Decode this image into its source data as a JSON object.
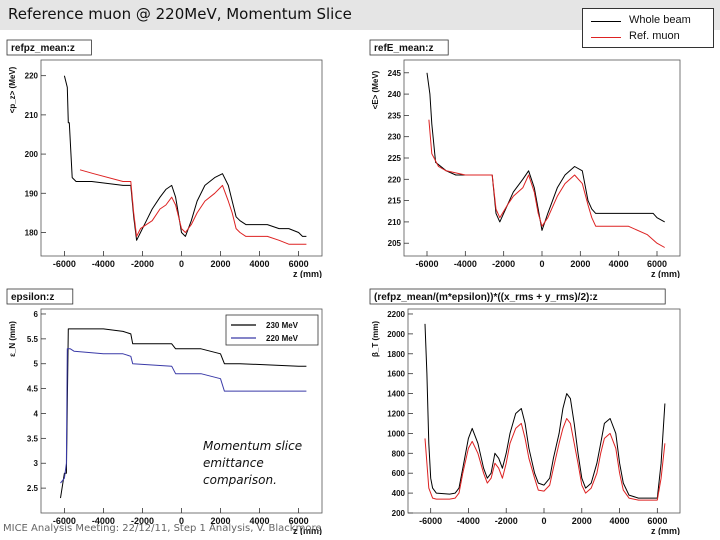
{
  "page": {
    "title": "Reference muon @ 220MeV, Momentum Slice",
    "footer": "MICE Analysis Meeting: 22/12/11, Step 1 Analysis, V. Blackmore",
    "annotation": "Momentum slice emittance comparison."
  },
  "top_legend": [
    {
      "label": "Whole beam",
      "color": "#000000"
    },
    {
      "label": "Ref. muon",
      "color": "#dd2222"
    }
  ],
  "chart_data": [
    {
      "type": "line",
      "title": "refpz_mean:z",
      "xlabel": "z (mm)",
      "ylabel": "<p_z> (MeV)",
      "xlim": [
        -7200,
        7200
      ],
      "ylim": [
        174,
        224
      ],
      "xticks": [
        -6000,
        -4000,
        -2000,
        0,
        2000,
        4000,
        6000
      ],
      "yticks": [
        180,
        190,
        200,
        210,
        220
      ],
      "series": [
        {
          "color": "#000000",
          "x": [
            -6000,
            -5850,
            -5800,
            -5750,
            -5600,
            -5400,
            -4600,
            -3000,
            -2600,
            -2450,
            -2300,
            -2100,
            -1800,
            -1500,
            -1100,
            -800,
            -500,
            -300,
            -200,
            0,
            200,
            500,
            800,
            1200,
            1700,
            2100,
            2400,
            2600,
            2800,
            3000,
            3300,
            4000,
            4400,
            5000,
            5500,
            6000,
            6200,
            6400
          ],
          "y": [
            220,
            217,
            208,
            208,
            194,
            193,
            193,
            192,
            192,
            184,
            178,
            180,
            183,
            186,
            189,
            191,
            192,
            189,
            186,
            180,
            179,
            183,
            188,
            192,
            194,
            195,
            192,
            188,
            184,
            183,
            182,
            182,
            182,
            181,
            181,
            180,
            179,
            179
          ]
        },
        {
          "color": "#dd2222",
          "x": [
            -5200,
            -4500,
            -3000,
            -2600,
            -2450,
            -2300,
            -2100,
            -1800,
            -1500,
            -1100,
            -800,
            -500,
            -300,
            -200,
            0,
            200,
            500,
            800,
            1200,
            1700,
            2100,
            2400,
            2600,
            2800,
            3000,
            3300,
            4000,
            4400,
            5000,
            5500,
            6000,
            6200,
            6400
          ],
          "y": [
            196,
            195,
            193,
            193,
            185,
            179,
            181,
            182,
            183,
            186,
            187,
            189,
            187,
            185,
            181,
            180,
            182,
            185,
            188,
            190,
            192,
            188,
            185,
            181,
            180,
            179,
            179,
            179,
            178,
            177,
            177,
            177,
            177
          ]
        }
      ]
    },
    {
      "type": "line",
      "title": "refE_mean:z",
      "xlabel": "z (mm)",
      "ylabel": "<E> (MeV)",
      "xlim": [
        -7200,
        7200
      ],
      "ylim": [
        202,
        248
      ],
      "xticks": [
        -6000,
        -4000,
        -2000,
        0,
        2000,
        4000,
        6000
      ],
      "yticks": [
        205,
        210,
        215,
        220,
        225,
        230,
        235,
        240,
        245
      ],
      "series": [
        {
          "color": "#000000",
          "x": [
            -6000,
            -5850,
            -5750,
            -5550,
            -5000,
            -4500,
            -3000,
            -2600,
            -2400,
            -2200,
            -1800,
            -1500,
            -1000,
            -700,
            -400,
            -200,
            0,
            300,
            800,
            1200,
            1700,
            2100,
            2400,
            2600,
            2800,
            3000,
            3500,
            4000,
            5000,
            5800,
            6000,
            6400
          ],
          "y": [
            245,
            240,
            233,
            224,
            222,
            221,
            221,
            221,
            212,
            210,
            214,
            217,
            220,
            222,
            218,
            213,
            208,
            212,
            218,
            221,
            223,
            222,
            215,
            213,
            212,
            212,
            212,
            212,
            212,
            212,
            211,
            210
          ]
        },
        {
          "color": "#dd2222",
          "x": [
            -5900,
            -5750,
            -5400,
            -5000,
            -4000,
            -3000,
            -2600,
            -2400,
            -2200,
            -1800,
            -1500,
            -1000,
            -700,
            -400,
            -200,
            0,
            300,
            800,
            1200,
            1700,
            2100,
            2400,
            2600,
            2800,
            3000,
            3500,
            4000,
            4500,
            5500,
            6000,
            6400
          ],
          "y": [
            234,
            226,
            223,
            222,
            221,
            221,
            221,
            213,
            211,
            214,
            216,
            218,
            221,
            217,
            212,
            209,
            211,
            216,
            219,
            221,
            219,
            214,
            211,
            209,
            209,
            209,
            209,
            209,
            207,
            205,
            204
          ]
        }
      ]
    },
    {
      "type": "line",
      "title": "epsilon:z",
      "xlabel": "z (mm)",
      "ylabel": "ε_N (mm)",
      "xlim": [
        -7200,
        7200
      ],
      "ylim": [
        2,
        6.1
      ],
      "xticks": [
        -6000,
        -4000,
        -2000,
        0,
        2000,
        4000,
        6000
      ],
      "yticks": [
        2.5,
        3,
        3.5,
        4,
        4.5,
        5,
        5.5,
        6
      ],
      "legend": {
        "position": "top-right"
      },
      "series": [
        {
          "name": "230 MeV",
          "color": "#000000",
          "x": [
            -6200,
            -6000,
            -5900,
            -5850,
            -5800,
            -5700,
            -5500,
            -4000,
            -3000,
            -2600,
            -2500,
            -500,
            -300,
            0,
            1000,
            2000,
            2200,
            3000,
            6000,
            6400
          ],
          "y": [
            2.3,
            2.8,
            2.8,
            4.2,
            5.7,
            5.7,
            5.7,
            5.7,
            5.65,
            5.6,
            5.4,
            5.4,
            5.3,
            5.3,
            5.3,
            5.2,
            5.0,
            5.0,
            4.95,
            4.95
          ]
        },
        {
          "name": "220 MeV",
          "color": "#3a3aa8",
          "x": [
            -6200,
            -6000,
            -5900,
            -5850,
            -5700,
            -5500,
            -4000,
            -3000,
            -2600,
            -2500,
            -500,
            -300,
            0,
            1000,
            2000,
            2200,
            3000,
            6000,
            6400
          ],
          "y": [
            2.6,
            2.7,
            3.0,
            5.3,
            5.3,
            5.25,
            5.2,
            5.2,
            5.15,
            5.0,
            4.95,
            4.8,
            4.8,
            4.8,
            4.7,
            4.45,
            4.45,
            4.45,
            4.45
          ]
        }
      ]
    },
    {
      "type": "line",
      "title": "(refpz_mean/(m*epsilon))*((x_rms + y_rms)/2):z",
      "xlabel": "z (mm)",
      "ylabel": "β_T (mm)",
      "xlim": [
        -7200,
        7200
      ],
      "ylim": [
        200,
        2250
      ],
      "xticks": [
        -6000,
        -4000,
        -2000,
        0,
        2000,
        4000,
        6000
      ],
      "yticks": [
        200,
        400,
        600,
        800,
        1000,
        1200,
        1400,
        1600,
        1800,
        2000,
        2200
      ],
      "series": [
        {
          "color": "#000000",
          "x": [
            -6300,
            -6200,
            -6100,
            -6000,
            -5900,
            -5700,
            -5000,
            -4700,
            -4500,
            -4300,
            -4000,
            -3800,
            -3500,
            -3200,
            -3000,
            -2800,
            -2600,
            -2400,
            -2200,
            -2000,
            -1800,
            -1500,
            -1200,
            -1000,
            -800,
            -500,
            -300,
            0,
            300,
            500,
            800,
            1000,
            1200,
            1400,
            1600,
            1800,
            2000,
            2200,
            2500,
            2800,
            3000,
            3200,
            3500,
            3800,
            4000,
            4200,
            4500,
            5000,
            5500,
            6000,
            6200,
            6400
          ],
          "y": [
            2100,
            1600,
            900,
            550,
            450,
            400,
            390,
            400,
            450,
            650,
            950,
            1050,
            900,
            650,
            550,
            600,
            800,
            750,
            650,
            800,
            1000,
            1200,
            1250,
            1100,
            850,
            600,
            500,
            480,
            550,
            750,
            1000,
            1250,
            1400,
            1350,
            1100,
            800,
            550,
            450,
            500,
            700,
            900,
            1100,
            1150,
            1000,
            700,
            500,
            380,
            350,
            350,
            350,
            700,
            1300
          ]
        },
        {
          "color": "#dd2222",
          "x": [
            -6300,
            -6200,
            -6100,
            -6000,
            -5900,
            -5700,
            -5000,
            -4700,
            -4500,
            -4300,
            -4000,
            -3800,
            -3500,
            -3200,
            -3000,
            -2800,
            -2600,
            -2400,
            -2200,
            -2000,
            -1800,
            -1500,
            -1200,
            -1000,
            -800,
            -500,
            -300,
            0,
            300,
            500,
            800,
            1000,
            1200,
            1400,
            1600,
            1800,
            2000,
            2200,
            2500,
            2800,
            3000,
            3200,
            3500,
            3800,
            4000,
            4200,
            4500,
            5000,
            5500,
            6000,
            6200,
            6400
          ],
          "y": [
            950,
            700,
            450,
            400,
            350,
            340,
            340,
            350,
            400,
            600,
            850,
            920,
            800,
            600,
            500,
            550,
            700,
            650,
            550,
            700,
            900,
            1050,
            1100,
            950,
            750,
            550,
            430,
            420,
            480,
            650,
            900,
            1050,
            1150,
            1100,
            900,
            700,
            480,
            400,
            450,
            600,
            800,
            950,
            1000,
            850,
            600,
            430,
            350,
            330,
            330,
            330,
            550,
            900
          ]
        }
      ]
    }
  ]
}
